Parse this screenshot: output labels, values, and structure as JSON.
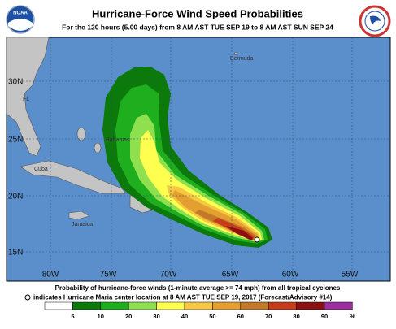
{
  "header": {
    "title": "Hurricane-Force Wind Speed Probabilities",
    "subtitle": "For the 120 hours (5.00 days) from 8 AM AST TUE SEP 19 to 8 AM AST SUN SEP 24",
    "logo_left": "NOAA"
  },
  "map": {
    "lat_labels": [
      "30N",
      "25N",
      "20N",
      "15N"
    ],
    "lon_labels": [
      "80W",
      "75W",
      "70W",
      "65W",
      "60W",
      "55W"
    ],
    "places": [
      "Bermuda",
      "FL",
      "Bahamas",
      "Cuba",
      "Jamaica"
    ]
  },
  "legend": {
    "line1": "Probability of hurricane-force winds (1-minute average >= 74 mph) from all tropical cyclones",
    "line2": "indicates Hurricane Maria center location at 8 AM AST TUE SEP 19, 2017 (Forecast/Advisory #14)",
    "scale_labels": [
      "5",
      "10",
      "20",
      "30",
      "40",
      "50",
      "60",
      "70",
      "80",
      "90",
      "%"
    ],
    "colors": [
      "#ffffff",
      "#0b7a0b",
      "#1eae1e",
      "#8fe04f",
      "#ffff50",
      "#f5c842",
      "#e3a030",
      "#c27a28",
      "#c83c1e",
      "#8c1010",
      "#9b2fa0"
    ]
  }
}
